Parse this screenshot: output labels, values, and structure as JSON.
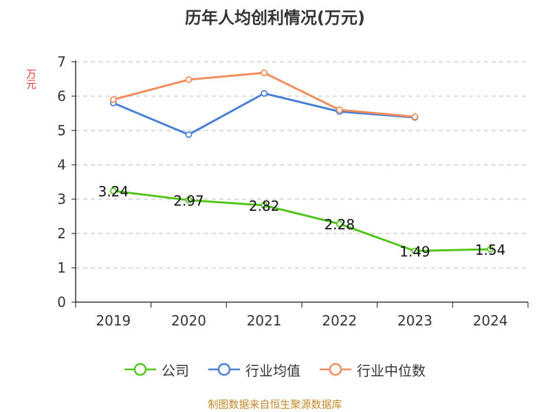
{
  "chart_data": {
    "type": "line",
    "title": "历年人均创利情况(万元)",
    "ylabel": "万元",
    "xlabel": "",
    "categories": [
      "2019",
      "2020",
      "2021",
      "2022",
      "2023",
      "2024"
    ],
    "ylim": [
      0,
      7
    ],
    "yticks": [
      0,
      1,
      2,
      3,
      4,
      5,
      6,
      7
    ],
    "grid": true,
    "legend_position": "bottom",
    "series": [
      {
        "name": "公司",
        "color": "#52c41a",
        "values": [
          3.24,
          2.97,
          2.82,
          2.28,
          1.49,
          1.54
        ],
        "labels": [
          "3.24",
          "2.97",
          "2.82",
          "2.28",
          "1.49",
          "1.54"
        ]
      },
      {
        "name": "行业均值",
        "color": "#4a7fd6",
        "values": [
          5.8,
          4.88,
          6.08,
          5.55,
          5.38,
          null
        ]
      },
      {
        "name": "行业中位数",
        "color": "#f28c5a",
        "values": [
          5.9,
          6.48,
          6.68,
          5.6,
          5.4,
          null
        ]
      }
    ]
  },
  "source_text": "制图数据来自恒生聚源数据库"
}
